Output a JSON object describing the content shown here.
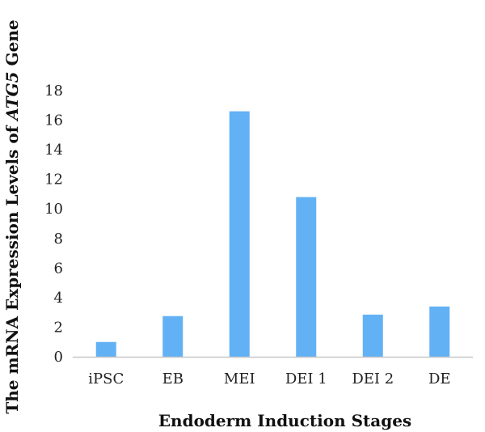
{
  "chart_data": {
    "type": "bar",
    "title": "",
    "xlabel": "Endoderm Induction Stages",
    "ylabel_prefix": "The mRNA Expression Levels of ",
    "ylabel_gene": "ATG5",
    "ylabel_suffix": " Gene",
    "categories": [
      "iPSC",
      "EB",
      "MEI",
      "DEI 1",
      "DEI 2",
      "DE"
    ],
    "values": [
      1.0,
      2.75,
      16.6,
      10.8,
      2.85,
      3.4
    ],
    "ylim": [
      0,
      18
    ],
    "yticks": [
      0,
      2,
      4,
      6,
      8,
      10,
      12,
      14,
      16,
      18
    ],
    "grid": false,
    "legend": "none",
    "colors": {
      "bar": "#62b1f5",
      "axis": "#c8c8c8"
    }
  }
}
